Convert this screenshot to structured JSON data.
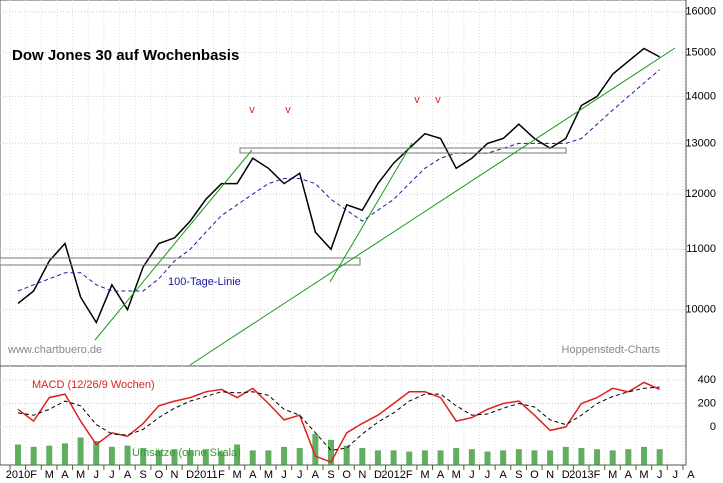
{
  "chart_data": [
    {
      "type": "line",
      "title": "Dow Jones 30 auf Wochenbasis",
      "log_scale": true,
      "grid": true,
      "ylim": [
        9150,
        16300
      ],
      "yticks": [
        10000,
        11000,
        12000,
        13000,
        14000,
        15000,
        16000
      ],
      "series": [
        {
          "name": "Dow Jones 30",
          "color": "#000000",
          "values": [
            10100,
            10300,
            10800,
            11100,
            10200,
            9800,
            10400,
            10000,
            10700,
            11100,
            11200,
            11500,
            11900,
            12200,
            12200,
            12700,
            12500,
            12200,
            12400,
            11300,
            11000,
            11800,
            11700,
            12200,
            12600,
            12900,
            13200,
            13100,
            12500,
            12700,
            13000,
            13100,
            13400,
            13100,
            12900,
            13100,
            13800,
            14000,
            14500,
            14800,
            15100,
            14900,
            null,
            null
          ]
        },
        {
          "name": "100-Tage-Linie",
          "color": "#1a1aa0",
          "dashed": true,
          "values": [
            10300,
            10400,
            10500,
            10600,
            10600,
            10400,
            10300,
            10300,
            10300,
            10500,
            10800,
            11000,
            11300,
            11600,
            11800,
            12000,
            12200,
            12300,
            12300,
            12200,
            11900,
            11700,
            11500,
            11700,
            11900,
            12200,
            12500,
            12700,
            12800,
            12800,
            12800,
            12900,
            13000,
            13000,
            13000,
            13000,
            13100,
            13400,
            13700,
            14000,
            14300,
            14600,
            null,
            null
          ]
        }
      ],
      "signals": [
        "v",
        "v",
        "v",
        "v"
      ],
      "annotations": [
        "www.chartbuero.de",
        "Hoppenstedt-Charts"
      ]
    },
    {
      "type": "line",
      "grid": true,
      "ylim": [
        -325,
        520
      ],
      "yticks": [
        0,
        200,
        400
      ],
      "categories": [
        "2010",
        "F",
        "M",
        "A",
        "M",
        "J",
        "J",
        "A",
        "S",
        "O",
        "N",
        "D",
        "2011",
        "F",
        "M",
        "A",
        "M",
        "J",
        "J",
        "A",
        "S",
        "O",
        "N",
        "D",
        "2012",
        "F",
        "M",
        "A",
        "M",
        "J",
        "J",
        "A",
        "S",
        "O",
        "N",
        "D",
        "2013",
        "F",
        "M",
        "A",
        "M",
        "J",
        "J",
        "A"
      ],
      "series": [
        {
          "name": "Umsätze (ohne Skala)",
          "type": "bar",
          "color": "#3a9a3a",
          "values": [
            -150,
            -170,
            -160,
            -140,
            -90,
            -120,
            -170,
            -160,
            -180,
            -200,
            -190,
            -200,
            -190,
            -210,
            -150,
            -200,
            -200,
            -170,
            -180,
            -60,
            -110,
            -160,
            -180,
            -200,
            -200,
            -210,
            -200,
            -200,
            -180,
            -190,
            -210,
            -200,
            -190,
            -200,
            -200,
            -170,
            -180,
            -190,
            -200,
            -190,
            -170,
            -190,
            null,
            null
          ]
        },
        {
          "name": "MACD (12/26/9 Wochen)",
          "color": "#e02020",
          "values": [
            150,
            50,
            250,
            280,
            50,
            -150,
            -50,
            -80,
            30,
            180,
            220,
            250,
            300,
            320,
            250,
            330,
            200,
            60,
            100,
            -250,
            -300,
            -50,
            30,
            100,
            200,
            300,
            300,
            250,
            50,
            80,
            150,
            200,
            220,
            100,
            -30,
            0,
            200,
            250,
            330,
            300,
            380,
            320,
            null,
            null
          ]
        },
        {
          "color": "#000000",
          "dashed": true,
          "values": [
            120,
            100,
            150,
            220,
            180,
            20,
            -60,
            -70,
            -20,
            80,
            160,
            220,
            260,
            300,
            290,
            300,
            270,
            150,
            100,
            -50,
            -200,
            -180,
            -60,
            40,
            120,
            220,
            280,
            280,
            180,
            100,
            110,
            160,
            200,
            170,
            60,
            20,
            100,
            200,
            260,
            300,
            330,
            340,
            null,
            null
          ]
        }
      ]
    }
  ]
}
